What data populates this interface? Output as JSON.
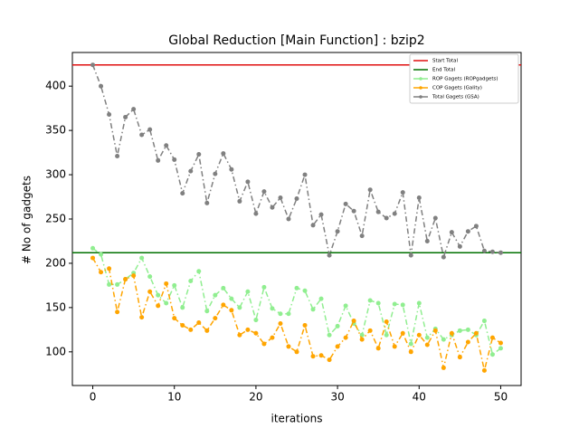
{
  "chart_data": {
    "type": "line",
    "title": "Global Reduction [Main Function] : bzip2",
    "x_label": "iterations",
    "y_label": "# No of gadgets",
    "x": [
      0,
      1,
      2,
      3,
      4,
      5,
      6,
      7,
      8,
      9,
      10,
      11,
      12,
      13,
      14,
      15,
      16,
      17,
      18,
      19,
      20,
      21,
      22,
      23,
      24,
      25,
      26,
      27,
      28,
      29,
      30,
      31,
      32,
      33,
      34,
      35,
      36,
      37,
      38,
      39,
      40,
      41,
      42,
      43,
      44,
      45,
      46,
      47,
      48,
      49,
      50
    ],
    "reference_lines": [
      {
        "name": "Start Total",
        "color": "#e01010",
        "value": 424
      },
      {
        "name": "End Total",
        "color": "#007000",
        "value": 212
      }
    ],
    "series": [
      {
        "name": "ROP Gagets (ROPgadgets)",
        "color": "#90ee90",
        "values": [
          217,
          210,
          176,
          176,
          182,
          189,
          206,
          185,
          164,
          155,
          175,
          150,
          180,
          191,
          146,
          164,
          172,
          160,
          150,
          168,
          136,
          173,
          149,
          143,
          143,
          172,
          169,
          148,
          160,
          119,
          129,
          152,
          132,
          119,
          158,
          155,
          119,
          154,
          153,
          109,
          155,
          116,
          126,
          114,
          119,
          124,
          125,
          119,
          135,
          97,
          104
        ]
      },
      {
        "name": "COP Gagets (Gality)",
        "color": "#ffa500",
        "values": [
          206,
          190,
          194,
          145,
          182,
          186,
          139,
          168,
          152,
          177,
          138,
          130,
          125,
          133,
          124,
          138,
          153,
          147,
          119,
          125,
          121,
          109,
          116,
          132,
          106,
          100,
          130,
          95,
          96,
          91,
          106,
          116,
          135,
          114,
          124,
          104,
          134,
          106,
          121,
          100,
          119,
          108,
          124,
          82,
          121,
          94,
          111,
          121,
          79,
          116,
          110
        ]
      },
      {
        "name": "Total Gagets (GSA)",
        "color": "#808080",
        "values": [
          424,
          400,
          368,
          321,
          365,
          374,
          345,
          351,
          316,
          333,
          317,
          279,
          304,
          323,
          268,
          301,
          324,
          306,
          270,
          292,
          256,
          281,
          263,
          274,
          250,
          273,
          300,
          243,
          255,
          209,
          236,
          267,
          259,
          231,
          283,
          258,
          251,
          256,
          280,
          209,
          274,
          225,
          251,
          207,
          235,
          219,
          236,
          242,
          214,
          213,
          212
        ]
      }
    ],
    "xlim": [
      -2.5,
      52.5
    ],
    "ylim": [
      62,
      438
    ],
    "xticks": [
      0,
      10,
      20,
      30,
      40,
      50
    ],
    "yticks": [
      100,
      150,
      200,
      250,
      300,
      350,
      400
    ],
    "legend": "upper right"
  }
}
